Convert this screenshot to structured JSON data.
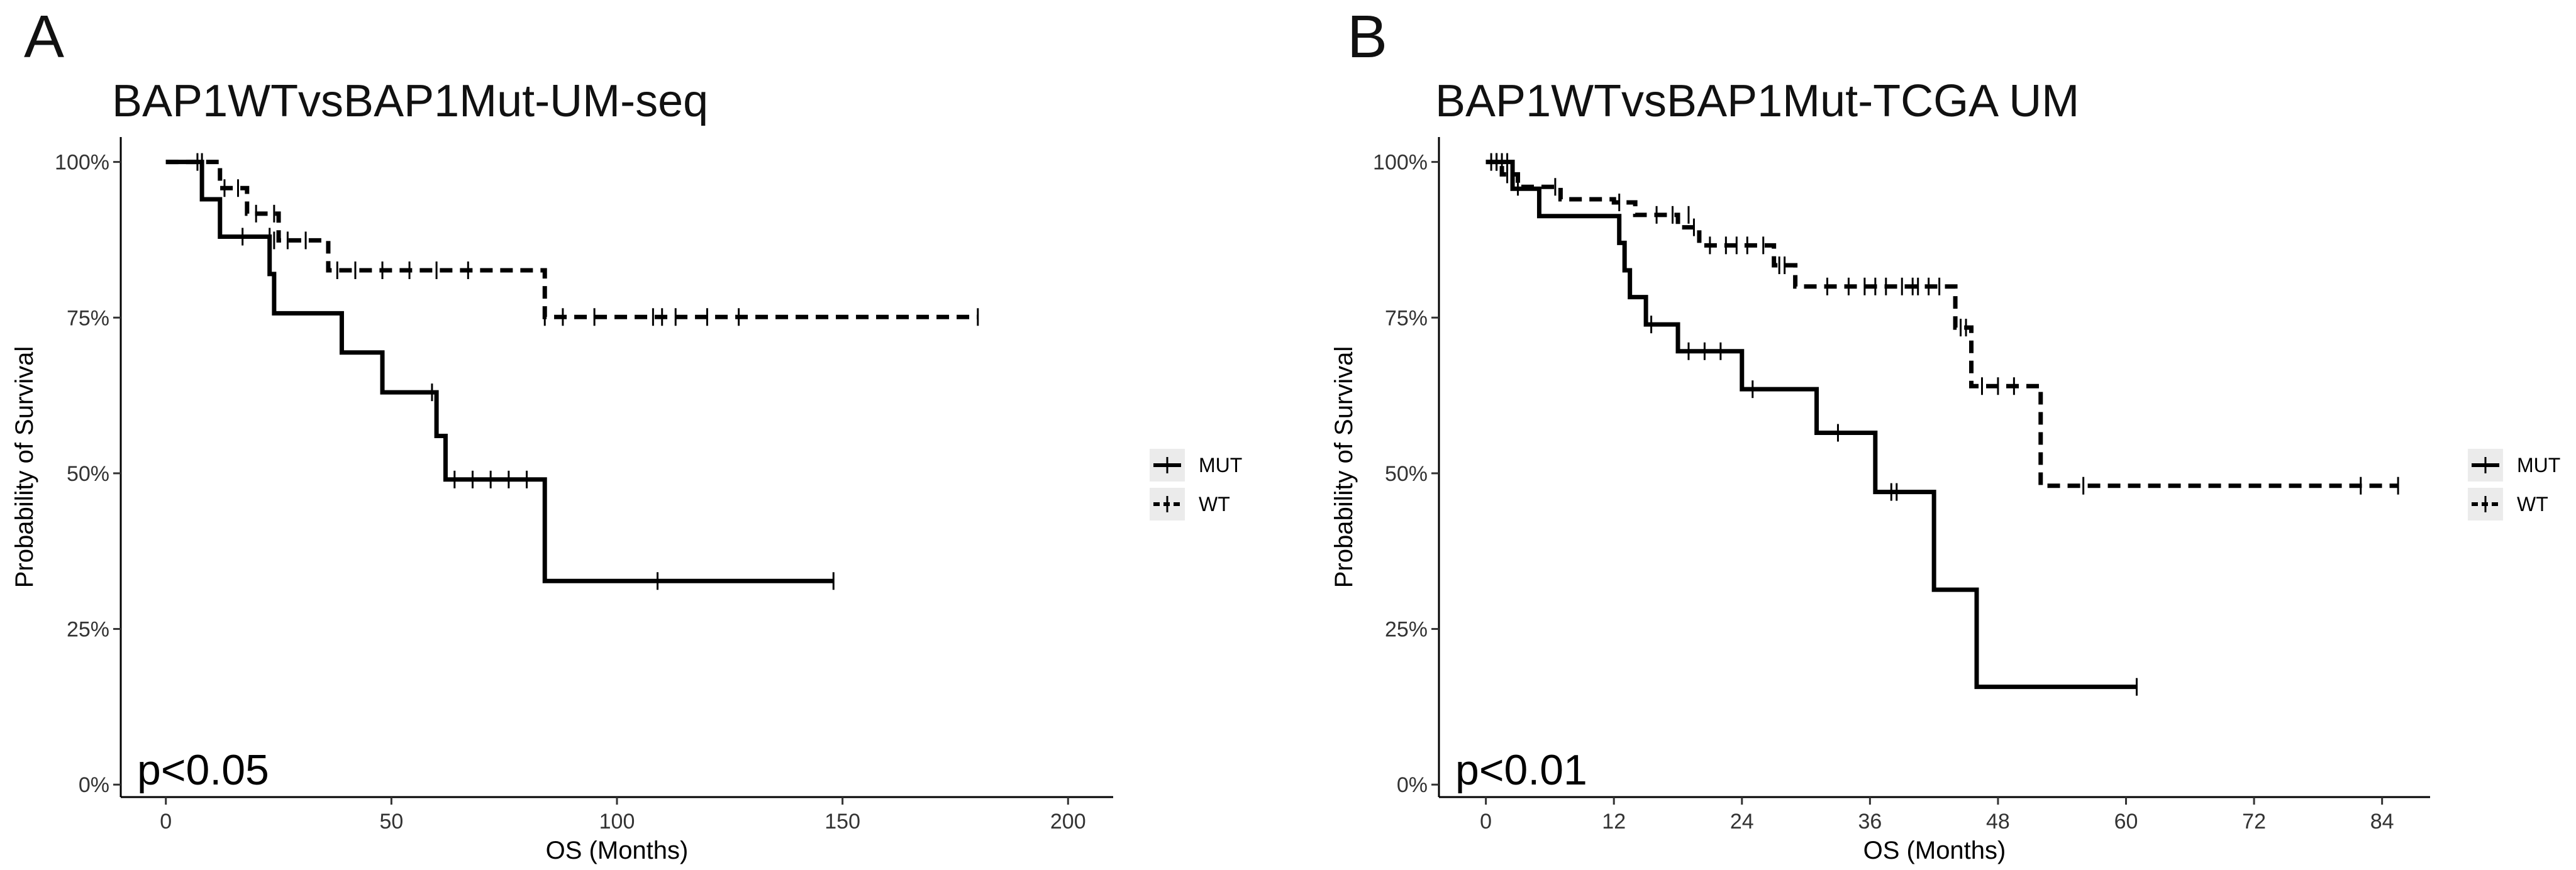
{
  "chart_data": [
    {
      "type": "line",
      "panel_label": "A",
      "title": "BAP1WTvsBAP1Mut-UM-seq",
      "xlabel": "OS (Months)",
      "ylabel": "Probability of Survival",
      "xlim": [
        -10,
        210
      ],
      "ylim": [
        -0.02,
        1.04
      ],
      "x_ticks": [
        0,
        50,
        100,
        150,
        200
      ],
      "x_tick_labels": [
        "0",
        "50",
        "100",
        "150",
        "200"
      ],
      "y_ticks": [
        0,
        0.25,
        0.5,
        0.75,
        1.0
      ],
      "y_tick_labels": [
        "0%",
        "25%",
        "50%",
        "75%",
        "100%"
      ],
      "annotation": "p<0.05",
      "legend": [
        "MUT",
        "WT"
      ],
      "series": [
        {
          "name": "MUT",
          "style": "solid",
          "steps": [
            [
              0,
              1.0
            ],
            [
              8,
              0.94
            ],
            [
              12,
              0.88
            ],
            [
              23,
              0.82
            ],
            [
              24,
              0.757
            ],
            [
              39,
              0.694
            ],
            [
              48,
              0.63
            ],
            [
              60,
              0.56
            ],
            [
              62,
              0.49
            ],
            [
              84,
              0.327
            ],
            [
              148,
              0.327
            ]
          ],
          "censor": [
            [
              8,
              1.0
            ],
            [
              17,
              0.88
            ],
            [
              23,
              0.88
            ],
            [
              59,
              0.63
            ],
            [
              64,
              0.49
            ],
            [
              68,
              0.49
            ],
            [
              72,
              0.49
            ],
            [
              76,
              0.49
            ],
            [
              80,
              0.49
            ],
            [
              109,
              0.327
            ],
            [
              148,
              0.327
            ]
          ]
        },
        {
          "name": "WT",
          "style": "dashed",
          "steps": [
            [
              0,
              1.0
            ],
            [
              12,
              0.958
            ],
            [
              18,
              0.917
            ],
            [
              25,
              0.874
            ],
            [
              36,
              0.826
            ],
            [
              84,
              0.751
            ],
            [
              180,
              0.751
            ]
          ],
          "censor": [
            [
              7,
              1.0
            ],
            [
              13,
              0.958
            ],
            [
              16,
              0.958
            ],
            [
              20,
              0.917
            ],
            [
              24,
              0.917
            ],
            [
              24,
              0.874
            ],
            [
              27,
              0.874
            ],
            [
              31,
              0.874
            ],
            [
              38,
              0.826
            ],
            [
              42,
              0.826
            ],
            [
              48,
              0.826
            ],
            [
              54,
              0.826
            ],
            [
              60,
              0.826
            ],
            [
              67,
              0.826
            ],
            [
              84,
              0.751
            ],
            [
              88,
              0.751
            ],
            [
              95,
              0.751
            ],
            [
              108,
              0.751
            ],
            [
              110,
              0.751
            ],
            [
              113,
              0.751
            ],
            [
              120,
              0.751
            ],
            [
              127,
              0.751
            ],
            [
              180,
              0.751
            ]
          ]
        }
      ]
    },
    {
      "type": "line",
      "panel_label": "B",
      "title": "BAP1WTvsBAP1Mut-TCGA UM",
      "xlabel": "OS (Months)",
      "ylabel": "Probability of Survival",
      "xlim": [
        -4.4,
        88.5
      ],
      "ylim": [
        -0.02,
        1.04
      ],
      "x_ticks": [
        0,
        12,
        24,
        36,
        48,
        60,
        72,
        84
      ],
      "x_tick_labels": [
        "0",
        "12",
        "24",
        "36",
        "48",
        "60",
        "72",
        "84"
      ],
      "y_ticks": [
        0,
        0.25,
        0.5,
        0.75,
        1.0
      ],
      "y_tick_labels": [
        "0%",
        "25%",
        "50%",
        "75%",
        "100%"
      ],
      "annotation": "p<0.01",
      "legend": [
        "MUT",
        "WT"
      ],
      "series": [
        {
          "name": "MUT",
          "style": "solid",
          "steps": [
            [
              0,
              1.0
            ],
            [
              2.5,
              0.957
            ],
            [
              5,
              0.913
            ],
            [
              12.5,
              0.87
            ],
            [
              13,
              0.826
            ],
            [
              13.5,
              0.783
            ],
            [
              15,
              0.739
            ],
            [
              18,
              0.696
            ],
            [
              24,
              0.635
            ],
            [
              31,
              0.565
            ],
            [
              36.5,
              0.47
            ],
            [
              42,
              0.313
            ],
            [
              46,
              0.157
            ],
            [
              61,
              0.157
            ]
          ],
          "censor": [
            [
              1,
              1.0
            ],
            [
              1.5,
              1.0
            ],
            [
              2,
              1.0
            ],
            [
              15.5,
              0.739
            ],
            [
              19,
              0.696
            ],
            [
              20.5,
              0.696
            ],
            [
              22,
              0.696
            ],
            [
              25,
              0.635
            ],
            [
              33,
              0.565
            ],
            [
              38,
              0.47
            ],
            [
              38.5,
              0.47
            ],
            [
              61,
              0.157
            ]
          ]
        },
        {
          "name": "WT",
          "style": "dashed",
          "steps": [
            [
              0,
              1.0
            ],
            [
              1.5,
              0.98
            ],
            [
              3,
              0.96
            ],
            [
              7,
              0.94
            ],
            [
              12,
              0.935
            ],
            [
              14,
              0.915
            ],
            [
              18,
              0.895
            ],
            [
              20,
              0.866
            ],
            [
              27,
              0.834
            ],
            [
              29,
              0.8
            ],
            [
              44,
              0.734
            ],
            [
              45.5,
              0.64
            ],
            [
              52,
              0.48
            ],
            [
              85.5,
              0.48
            ]
          ],
          "censor": [
            [
              0.5,
              1.0
            ],
            [
              1,
              1.0
            ],
            [
              2,
              0.98
            ],
            [
              3,
              0.96
            ],
            [
              6.5,
              0.96
            ],
            [
              12.5,
              0.935
            ],
            [
              16,
              0.915
            ],
            [
              17.5,
              0.915
            ],
            [
              19,
              0.915
            ],
            [
              19.5,
              0.895
            ],
            [
              21,
              0.866
            ],
            [
              22.5,
              0.866
            ],
            [
              23.5,
              0.866
            ],
            [
              24.5,
              0.866
            ],
            [
              26,
              0.866
            ],
            [
              27.5,
              0.834
            ],
            [
              28,
              0.834
            ],
            [
              32,
              0.8
            ],
            [
              34,
              0.8
            ],
            [
              35.5,
              0.8
            ],
            [
              36.5,
              0.8
            ],
            [
              37.5,
              0.8
            ],
            [
              39,
              0.8
            ],
            [
              40,
              0.8
            ],
            [
              40.5,
              0.8
            ],
            [
              41.5,
              0.8
            ],
            [
              42.5,
              0.8
            ],
            [
              44.5,
              0.734
            ],
            [
              45,
              0.734
            ],
            [
              46.5,
              0.64
            ],
            [
              48,
              0.64
            ],
            [
              49.5,
              0.64
            ],
            [
              56,
              0.48
            ],
            [
              82,
              0.48
            ],
            [
              85.5,
              0.48
            ]
          ]
        }
      ]
    }
  ]
}
